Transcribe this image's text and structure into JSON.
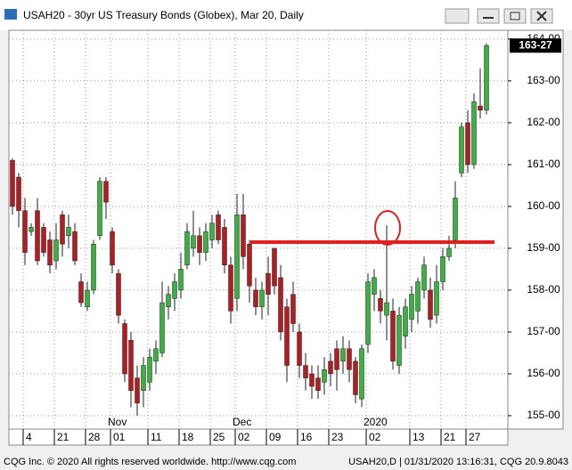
{
  "window_title": "USAH20 - 30yr US Treasury Bonds (Globex), Mar 20, Daily",
  "footer_left": "CQG Inc. © 2020 All rights reserved worldwide. http://www.cqg.com",
  "footer_right": "USAH20,D | 01/31/2020 13:16:31, CQG 20.9.8043",
  "chart_data": {
    "type": "candlestick",
    "categories": [
      null,
      null,
      "4",
      null,
      null,
      null,
      null,
      "21",
      null,
      null,
      null,
      null,
      "28",
      null,
      null,
      null,
      "01",
      null,
      null,
      null,
      null,
      null,
      "11",
      null,
      null,
      null,
      null,
      "18",
      null,
      null,
      null,
      null,
      "25",
      null,
      null,
      null,
      "02",
      null,
      null,
      null,
      null,
      "09",
      null,
      null,
      null,
      null,
      "16",
      null,
      null,
      null,
      null,
      "23",
      null,
      null,
      null,
      null,
      null,
      "02",
      null,
      null,
      null,
      null,
      null,
      null,
      "13",
      null,
      null,
      null,
      null,
      "21",
      null,
      null,
      null,
      "27",
      null,
      null,
      null
    ],
    "period_labels": [
      null,
      null,
      null,
      null,
      null,
      null,
      null,
      null,
      null,
      null,
      null,
      null,
      null,
      null,
      null,
      null,
      "Nov",
      null,
      null,
      null,
      null,
      null,
      null,
      null,
      null,
      null,
      null,
      null,
      null,
      null,
      null,
      null,
      null,
      null,
      null,
      null,
      "Dec",
      null,
      null,
      null,
      null,
      null,
      null,
      null,
      null,
      null,
      null,
      null,
      null,
      null,
      null,
      null,
      null,
      null,
      null,
      null,
      null,
      "2020",
      null,
      null,
      null,
      null,
      null,
      null,
      null,
      null,
      null,
      null,
      null,
      null,
      null,
      null,
      null,
      null,
      null,
      null,
      null
    ],
    "open": [
      161.1,
      160.7,
      159.9,
      159.4,
      159.9,
      159.5,
      159.2,
      158.7,
      159.8,
      159.3,
      159.4,
      158.2,
      157.6,
      158.0,
      159.3,
      160.6,
      159.4,
      158.4,
      157.2,
      156.8,
      155.9,
      155.6,
      155.8,
      156.3,
      156.5,
      157.6,
      157.8,
      158.0,
      158.6,
      159.0,
      159.3,
      158.9,
      159.2,
      159.8,
      159.5,
      158.6,
      157.8,
      159.8,
      159.1,
      158.0,
      157.6,
      158.4,
      159.0,
      158.3,
      157.6,
      157.9,
      157.0,
      156.2,
      156.0,
      155.9,
      155.8,
      156.3,
      156.6,
      156.3,
      156.6,
      156.3,
      155.4,
      156.7,
      157.9,
      157.8,
      157.4,
      157.5,
      156.2,
      156.9,
      157.3,
      157.5,
      158.0,
      158.0,
      157.4,
      158.2,
      158.8,
      159.2,
      160.8,
      162.0,
      161.0,
      162.4,
      162.3
    ],
    "high": [
      161.15,
      160.8,
      160.2,
      159.6,
      160.2,
      159.6,
      159.4,
      159.6,
      159.9,
      159.8,
      159.6,
      158.4,
      158.2,
      159.2,
      160.7,
      160.7,
      159.5,
      158.5,
      157.3,
      157.0,
      156.2,
      156.4,
      156.6,
      156.8,
      158.2,
      158.1,
      158.4,
      158.9,
      159.6,
      159.9,
      159.5,
      159.6,
      159.8,
      159.9,
      159.7,
      158.8,
      160.3,
      160.3,
      159.2,
      158.3,
      158.2,
      158.8,
      159.0,
      158.6,
      157.8,
      158.2,
      157.2,
      156.5,
      156.2,
      156.2,
      156.4,
      156.5,
      156.8,
      156.9,
      156.8,
      156.4,
      156.7,
      158.4,
      158.5,
      158.0,
      159.55,
      157.8,
      157.6,
      157.8,
      158.1,
      158.3,
      158.8,
      158.3,
      158.6,
      159.0,
      159.3,
      160.6,
      162.0,
      162.3,
      162.7,
      163.3,
      163.9
    ],
    "low": [
      159.8,
      159.5,
      158.6,
      159.3,
      158.6,
      158.8,
      158.4,
      158.5,
      158.8,
      159.0,
      158.6,
      157.6,
      157.5,
      157.9,
      159.2,
      159.7,
      158.4,
      157.2,
      155.8,
      155.2,
      155.0,
      155.2,
      155.6,
      156.0,
      156.4,
      157.3,
      157.5,
      157.8,
      158.5,
      158.8,
      158.6,
      158.7,
      159.0,
      159.1,
      158.4,
      157.2,
      157.5,
      158.5,
      157.7,
      157.4,
      157.3,
      157.4,
      157.9,
      156.8,
      155.8,
      157.0,
      155.9,
      155.6,
      155.4,
      155.4,
      155.5,
      155.7,
      155.6,
      156.0,
      155.8,
      155.3,
      155.2,
      156.5,
      157.5,
      157.2,
      156.8,
      156.1,
      156.0,
      156.6,
      157.0,
      157.2,
      157.8,
      157.1,
      157.2,
      158.0,
      158.7,
      159.0,
      160.7,
      160.8,
      160.9,
      162.1,
      162.2
    ],
    "close": [
      160.0,
      159.9,
      158.9,
      159.5,
      158.7,
      158.9,
      158.6,
      159.2,
      159.1,
      159.5,
      158.7,
      157.7,
      158.0,
      159.1,
      160.6,
      160.1,
      158.6,
      157.4,
      156.0,
      155.6,
      155.3,
      156.2,
      156.4,
      156.6,
      157.7,
      157.9,
      158.2,
      158.5,
      159.4,
      159.3,
      158.9,
      159.4,
      159.6,
      159.2,
      158.6,
      157.5,
      159.8,
      158.8,
      158.1,
      157.6,
      158.0,
      157.9,
      158.1,
      157.0,
      156.2,
      157.2,
      156.2,
      155.9,
      155.7,
      155.6,
      156.1,
      156.0,
      156.1,
      156.6,
      156.1,
      155.5,
      156.6,
      158.2,
      158.3,
      157.5,
      157.7,
      156.3,
      157.4,
      157.6,
      157.9,
      158.2,
      158.6,
      157.3,
      158.2,
      158.8,
      159.0,
      160.2,
      161.9,
      161.0,
      162.5,
      162.3,
      163.84375
    ],
    "up_color": "#3cb043",
    "down_color": "#b01e23",
    "ylim": [
      154.68,
      164.21
    ],
    "yticks": [
      {
        "value": 155,
        "label": "155-00"
      },
      {
        "value": 156,
        "label": "156-00"
      },
      {
        "value": 157,
        "label": "157-00"
      },
      {
        "value": 158,
        "label": "158-00"
      },
      {
        "value": 159,
        "label": "159-00"
      },
      {
        "value": 160,
        "label": "160-00"
      },
      {
        "value": 161,
        "label": "161-00"
      },
      {
        "value": 162,
        "label": "162-00"
      },
      {
        "value": 163,
        "label": "163-00"
      },
      {
        "value": 164,
        "label": "164-00"
      }
    ],
    "last_price": {
      "value": 163.84375,
      "label": "163-27"
    },
    "grid": true
  }
}
